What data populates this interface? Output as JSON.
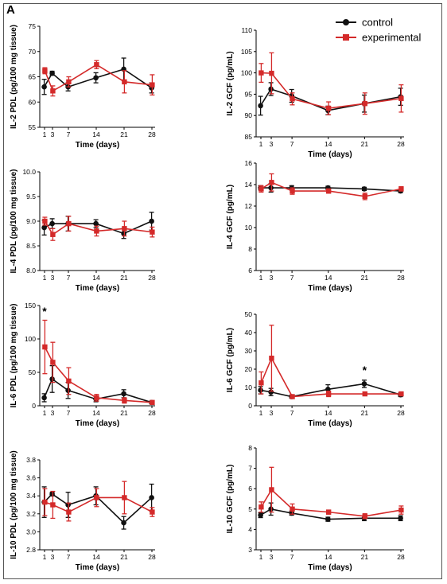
{
  "figure": {
    "panel_label": "A",
    "legend": [
      {
        "label": "control",
        "color": "#111111",
        "marker": "circle"
      },
      {
        "label": "experimental",
        "color": "#d42a2a",
        "marker": "square"
      }
    ]
  },
  "chart_data": [
    {
      "type": "line",
      "id": "il2-pdl",
      "ylabel": "IL-2 PDL  (pg/100 mg tissue)",
      "xlabel": "Time (days)",
      "x": [
        1,
        3,
        7,
        14,
        21,
        28
      ],
      "xticks": [
        "1",
        "3",
        "7",
        "14",
        "21",
        "28"
      ],
      "ylim": [
        55,
        75
      ],
      "yticks": [
        55,
        60,
        65,
        70,
        75
      ],
      "series": [
        {
          "name": "control",
          "values": [
            63,
            65.7,
            63,
            64.8,
            66.5,
            62.8
          ],
          "err": [
            1.5,
            0.4,
            0.8,
            1.0,
            2.2,
            1.0
          ]
        },
        {
          "name": "experimental",
          "values": [
            66.2,
            62.2,
            64,
            67.4,
            64,
            63.4
          ],
          "err": [
            0.6,
            1.0,
            1.0,
            0.8,
            2.2,
            2.0
          ]
        }
      ]
    },
    {
      "type": "line",
      "id": "il2-gcf",
      "ylabel": "IL-2 GCF  (pg/mL)",
      "xlabel": "Time (days)",
      "x": [
        1,
        3,
        7,
        14,
        21,
        28
      ],
      "xticks": [
        "1",
        "3",
        "7",
        "14",
        "21",
        "28"
      ],
      "ylim": [
        85,
        110
      ],
      "yticks": [
        85,
        90,
        95,
        100,
        105,
        110
      ],
      "series": [
        {
          "name": "control",
          "values": [
            92.3,
            96.2,
            94.6,
            91.2,
            92.8,
            94.4
          ],
          "err": [
            2.2,
            1.5,
            1.5,
            1.0,
            2.0,
            2.0
          ]
        },
        {
          "name": "experimental",
          "values": [
            100,
            99.9,
            93.9,
            91.7,
            92.8,
            94
          ],
          "err": [
            2.2,
            4.8,
            1.4,
            1.5,
            2.5,
            3.2
          ]
        }
      ]
    },
    {
      "type": "line",
      "id": "il4-pdl",
      "ylabel": "IL-4  PDL  (pg/100 mg tissue)",
      "xlabel": "Time (days)",
      "x": [
        1,
        3,
        7,
        14,
        21,
        28
      ],
      "xticks": [
        "1",
        "3",
        "7",
        "14",
        "21",
        "28"
      ],
      "ylim": [
        8.0,
        10.0
      ],
      "yticks": [
        8.0,
        8.5,
        9.0,
        9.5,
        10.0
      ],
      "series": [
        {
          "name": "control",
          "values": [
            8.87,
            8.95,
            8.95,
            8.95,
            8.75,
            9.0
          ],
          "err": [
            0.15,
            0.1,
            0.15,
            0.08,
            0.1,
            0.18
          ]
        },
        {
          "name": "experimental",
          "values": [
            9.0,
            8.73,
            8.95,
            8.8,
            8.85,
            8.78
          ],
          "err": [
            0.08,
            0.12,
            0.15,
            0.1,
            0.15,
            0.1
          ]
        }
      ]
    },
    {
      "type": "line",
      "id": "il4-gcf",
      "ylabel": "IL-4 GCF  (pg/mL)",
      "xlabel": "Time (days)",
      "x": [
        1,
        3,
        7,
        14,
        21,
        28
      ],
      "xticks": [
        "1",
        "3",
        "7",
        "14",
        "21",
        "28"
      ],
      "ylim": [
        6,
        16
      ],
      "yticks": [
        6,
        8,
        10,
        12,
        14,
        16
      ],
      "series": [
        {
          "name": "control",
          "values": [
            13.7,
            13.7,
            13.7,
            13.7,
            13.6,
            13.4
          ],
          "err": [
            0.2,
            0.4,
            0.2,
            0.15,
            0.15,
            0.15
          ]
        },
        {
          "name": "experimental",
          "values": [
            13.6,
            14.2,
            13.4,
            13.4,
            12.9,
            13.6
          ],
          "err": [
            0.3,
            0.8,
            0.3,
            0.2,
            0.3,
            0.2
          ]
        }
      ]
    },
    {
      "type": "line",
      "id": "il6-pdl",
      "ylabel": "IL-6  PDL  (pg/100 mg tissue)",
      "xlabel": "Time (days)",
      "x": [
        1,
        3,
        7,
        14,
        21,
        28
      ],
      "xticks": [
        "1",
        "3",
        "7",
        "14",
        "21",
        "28"
      ],
      "ylim": [
        0,
        150
      ],
      "yticks": [
        0,
        50,
        100,
        150
      ],
      "annotations": [
        {
          "text": "*",
          "x": 1
        }
      ],
      "series": [
        {
          "name": "control",
          "values": [
            12,
            40,
            23,
            10,
            18,
            5
          ],
          "err": [
            6,
            20,
            12,
            4,
            6,
            2
          ]
        },
        {
          "name": "experimental",
          "values": [
            88,
            65,
            37,
            12,
            8,
            5
          ],
          "err": [
            40,
            30,
            20,
            5,
            4,
            2
          ]
        }
      ]
    },
    {
      "type": "line",
      "id": "il6-gcf",
      "ylabel": "IL-6 GCF  (pg/mL)",
      "xlabel": "Time (days)",
      "x": [
        1,
        3,
        7,
        14,
        21,
        28
      ],
      "xticks": [
        "1",
        "3",
        "7",
        "14",
        "21",
        "28"
      ],
      "ylim": [
        0,
        50
      ],
      "yticks": [
        0,
        10,
        20,
        30,
        40,
        50
      ],
      "annotations": [
        {
          "text": "*",
          "x": 21
        }
      ],
      "series": [
        {
          "name": "control",
          "values": [
            8.5,
            7.5,
            5,
            9,
            12,
            6
          ],
          "err": [
            2,
            2,
            0.8,
            2.5,
            2,
            1
          ]
        },
        {
          "name": "experimental",
          "values": [
            12.5,
            26,
            5,
            6.5,
            6.5,
            6.5
          ],
          "err": [
            6,
            18,
            0.8,
            1.5,
            1,
            1
          ]
        }
      ]
    },
    {
      "type": "line",
      "id": "il10-pdl",
      "ylabel": "IL-10 PDL (pg/100 mg tissue)",
      "xlabel": "Time (days)",
      "x": [
        1,
        3,
        7,
        14,
        21,
        28
      ],
      "xticks": [
        "1",
        "3",
        "7",
        "14",
        "21",
        "28"
      ],
      "ylim": [
        2.8,
        3.8
      ],
      "yticks": [
        2.8,
        3.0,
        3.2,
        3.4,
        3.6,
        3.8
      ],
      "series": [
        {
          "name": "control",
          "values": [
            3.33,
            3.42,
            3.3,
            3.4,
            3.1,
            3.38
          ],
          "err": [
            0.17,
            0.02,
            0.14,
            0.1,
            0.07,
            0.15
          ]
        },
        {
          "name": "experimental",
          "values": [
            3.33,
            3.3,
            3.22,
            3.38,
            3.38,
            3.22
          ],
          "err": [
            0.15,
            0.15,
            0.1,
            0.1,
            0.18,
            0.05
          ]
        }
      ]
    },
    {
      "type": "line",
      "id": "il10-gcf",
      "ylabel": "IL-10 GCF  (pg/mL)",
      "xlabel": "Time (days)",
      "x": [
        1,
        3,
        7,
        14,
        21,
        28
      ],
      "xticks": [
        "1",
        "3",
        "7",
        "14",
        "21",
        "28"
      ],
      "ylim": [
        3,
        8
      ],
      "yticks": [
        3,
        4,
        5,
        6,
        7,
        8
      ],
      "series": [
        {
          "name": "control",
          "values": [
            4.7,
            5.0,
            4.8,
            4.5,
            4.55,
            4.55
          ],
          "err": [
            0.12,
            0.3,
            0.1,
            0.1,
            0.12,
            0.12
          ]
        },
        {
          "name": "experimental",
          "values": [
            5.1,
            5.95,
            5.0,
            4.85,
            4.65,
            4.95
          ],
          "err": [
            0.25,
            1.1,
            0.25,
            0.1,
            0.12,
            0.2
          ]
        }
      ]
    }
  ]
}
